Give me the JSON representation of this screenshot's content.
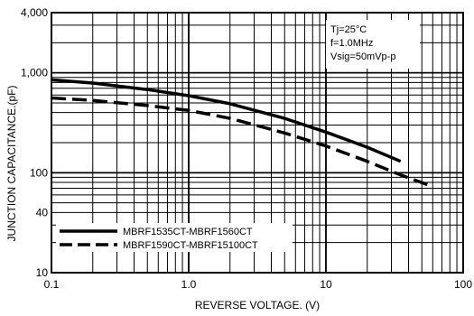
{
  "chart_data": {
    "type": "line",
    "title": "",
    "xlabel": "REVERSE VOLTAGE. (V)",
    "ylabel": "JUNCTION CAPACITANCE.(pF)",
    "x_scale": "log",
    "y_scale": "log",
    "xlim": [
      0.1,
      100
    ],
    "ylim": [
      10,
      4000
    ],
    "grid": true,
    "x_ticks": [
      {
        "value": 0.1,
        "label": "0.1"
      },
      {
        "value": 1,
        "label": "1.0"
      },
      {
        "value": 10,
        "label": "10"
      },
      {
        "value": 100,
        "label": "100"
      }
    ],
    "y_ticks": [
      {
        "value": 4000,
        "label": "4,000"
      },
      {
        "value": 1000,
        "label": "1,000"
      },
      {
        "value": 100,
        "label": "100"
      },
      {
        "value": 40,
        "label": "40"
      },
      {
        "value": 10,
        "label": "10"
      }
    ],
    "annotations": [
      "Tj=25°C",
      "f=1.0MHz",
      "Vsig=50mVp-p"
    ],
    "legend_position": "bottom-left",
    "series": [
      {
        "name": "MBRF1535CT-MBRF1560CT",
        "style": "solid",
        "x": [
          0.1,
          0.2,
          0.5,
          1,
          2,
          5,
          10,
          20,
          35
        ],
        "y": [
          850,
          790,
          680,
          590,
          490,
          350,
          255,
          180,
          130
        ]
      },
      {
        "name": "MBRF1590CT-MBRF15100CT",
        "style": "dashed",
        "x": [
          0.1,
          0.2,
          0.5,
          1,
          2,
          5,
          10,
          20,
          35,
          55
        ],
        "y": [
          560,
          530,
          470,
          420,
          350,
          250,
          185,
          130,
          95,
          76
        ]
      }
    ],
    "colors": {
      "line": "#000000",
      "grid": "#000000",
      "background": "#ffffff"
    }
  }
}
